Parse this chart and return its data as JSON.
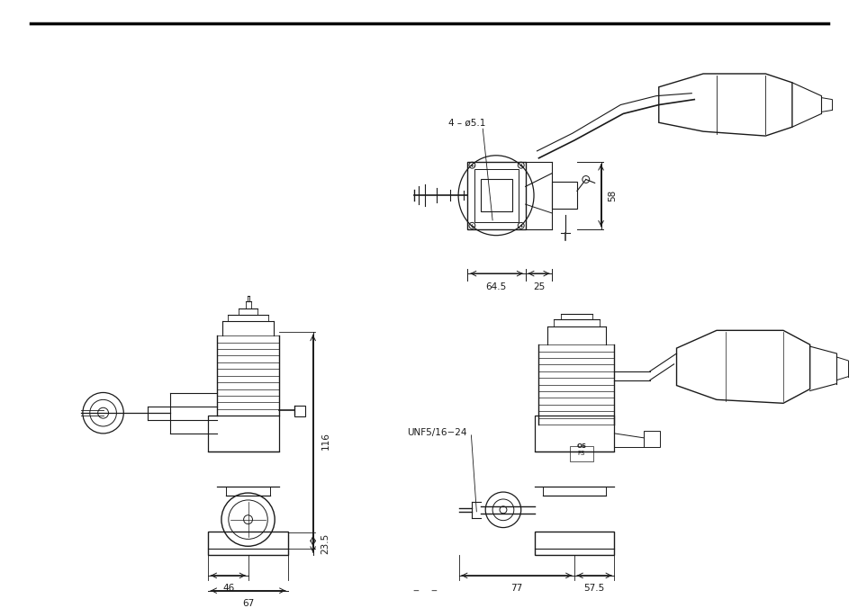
{
  "bg_color": "#ffffff",
  "line_color": "#1a1a1a",
  "dim_color": "#1a1a1a",
  "annotations": {
    "top_view": {
      "label_phi": "4 – ø5.1",
      "label_58": "58",
      "label_64_5": "64.5",
      "label_25": "25"
    },
    "front_view": {
      "label_116": "116",
      "label_23_5": "23.5",
      "label_46": "46",
      "label_67": "67"
    },
    "side_view": {
      "label_unf": "UNF5/16−24",
      "label_77": "77",
      "label_57_5": "57.5"
    }
  },
  "figsize": [
    9.54,
    6.76
  ],
  "dpi": 100
}
